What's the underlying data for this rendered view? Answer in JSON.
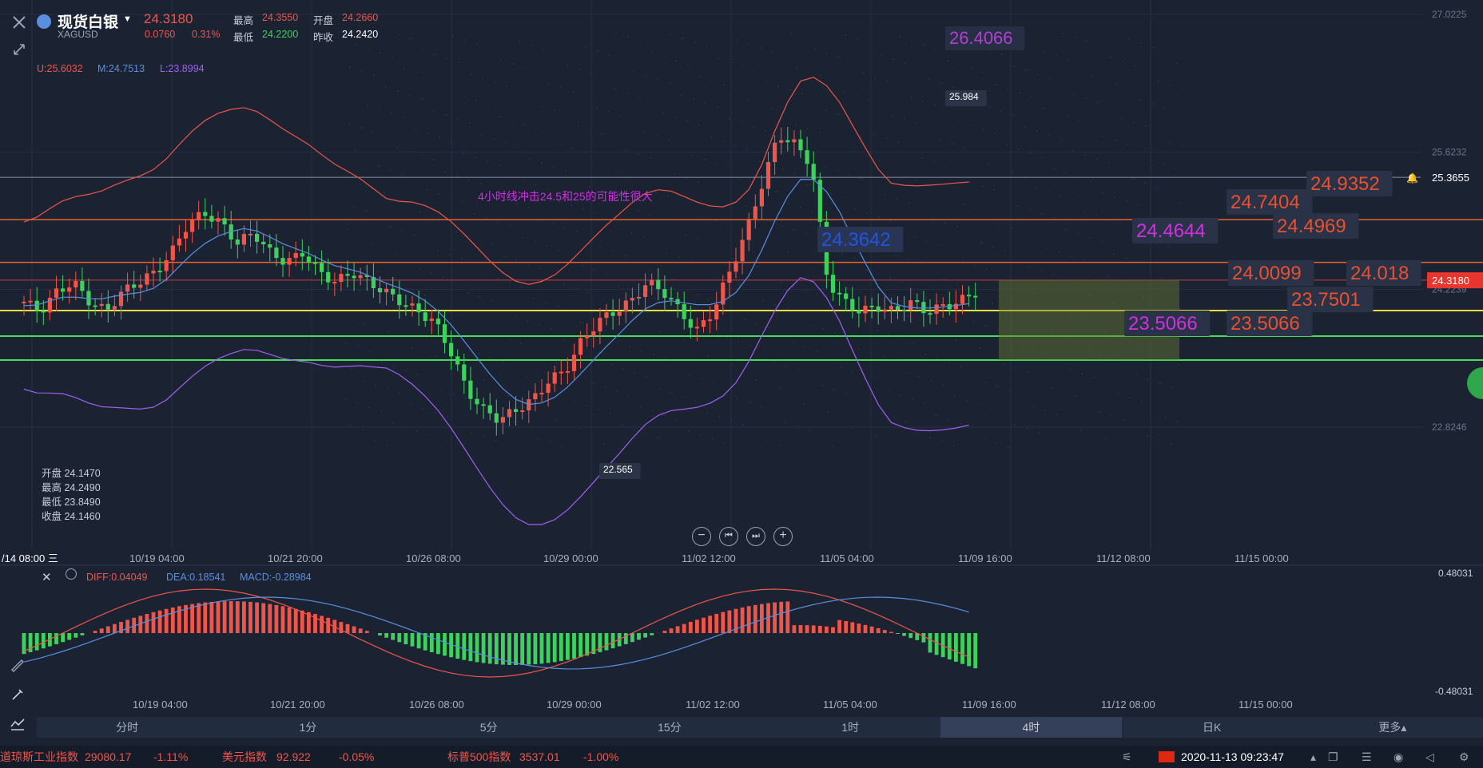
{
  "header": {
    "title": "现货白银",
    "symbol": "XAGUSD",
    "price": "24.3180",
    "change": "0.0760",
    "change_pct": "0.31%",
    "high_label": "最高",
    "high": "24.3550",
    "open_label": "开盘",
    "open": "24.2660",
    "low_label": "最低",
    "low": "24.2200",
    "prev_label": "昨收",
    "prev": "24.2420"
  },
  "boll": {
    "u": "U:25.6032",
    "m": "M:24.7513",
    "l": "L:23.8994"
  },
  "ohlc": {
    "open": "开盘 24.1470",
    "high": "最高 24.2490",
    "low": "最低 23.8490",
    "close": "收盘 24.1460"
  },
  "annotation": "4小时线冲击24.5和25的可能性很大",
  "price_labels": [
    {
      "text": "26.4066",
      "color": "#b040d0"
    },
    {
      "text": "25.984",
      "color": "#ffffff"
    },
    {
      "text": "22.565",
      "color": "#ffffff"
    },
    {
      "text": "24.3642",
      "color": "#2255dd"
    },
    {
      "text": "24.9352",
      "color": "#e8502e"
    },
    {
      "text": "24.7404",
      "color": "#e8502e"
    },
    {
      "text": "24.4969",
      "color": "#e8502e"
    },
    {
      "text": "24.4644",
      "color": "#d030e0"
    },
    {
      "text": "24.0099",
      "color": "#e8502e"
    },
    {
      "text": "24.018",
      "color": "#e8502e"
    },
    {
      "text": "23.7501",
      "color": "#e8502e"
    },
    {
      "text": "23.5066",
      "color": "#d030e0"
    },
    {
      "text": "23.5066",
      "color": "#e8502e"
    }
  ],
  "axis_right": {
    "ticks": [
      "27.0225",
      "25.6232",
      "24.2239",
      "22.8246"
    ],
    "alert_price": "25.3655",
    "current": "24.3180"
  },
  "x_labels": [
    "10/19 04:00",
    "10/21 20:00",
    "10/26 08:00",
    "10/29 00:00",
    "11/02 12:00",
    "11/05 04:00",
    "11/09 16:00",
    "11/12 08:00",
    "11/15 00:00"
  ],
  "x_left_label": "/14 08:00 三",
  "macd": {
    "diff": "DIFF:0.04049",
    "dea": "DEA:0.18541",
    "macd": "MACD:-0.28984",
    "top": "0.48031",
    "bottom": "-0.48031"
  },
  "timeframes": [
    {
      "label": "分时",
      "active": false
    },
    {
      "label": "1分",
      "active": false
    },
    {
      "label": "5分",
      "active": false
    },
    {
      "label": "15分",
      "active": false
    },
    {
      "label": "1时",
      "active": false
    },
    {
      "label": "4时",
      "active": true
    },
    {
      "label": "日K",
      "active": false
    },
    {
      "label": "更多▴",
      "active": false
    }
  ],
  "ticker": {
    "dow_name": "道琼斯工业指数",
    "dow_val": "29080.17",
    "dow_chg": "-1.11%",
    "usd_name": "美元指数",
    "usd_val": "92.922",
    "usd_chg": "-0.05%",
    "sp_name": "标普500指数",
    "sp_val": "3537.01",
    "sp_chg": "-1.00%",
    "datetime": "2020-11-13 09:23:47"
  },
  "colors": {
    "up": "#f0554a",
    "down": "#3ed15e",
    "bg": "#1b2333",
    "orange_line": "#e8632e",
    "yellow_line": "#e8e040",
    "green_line": "#44dd55"
  }
}
